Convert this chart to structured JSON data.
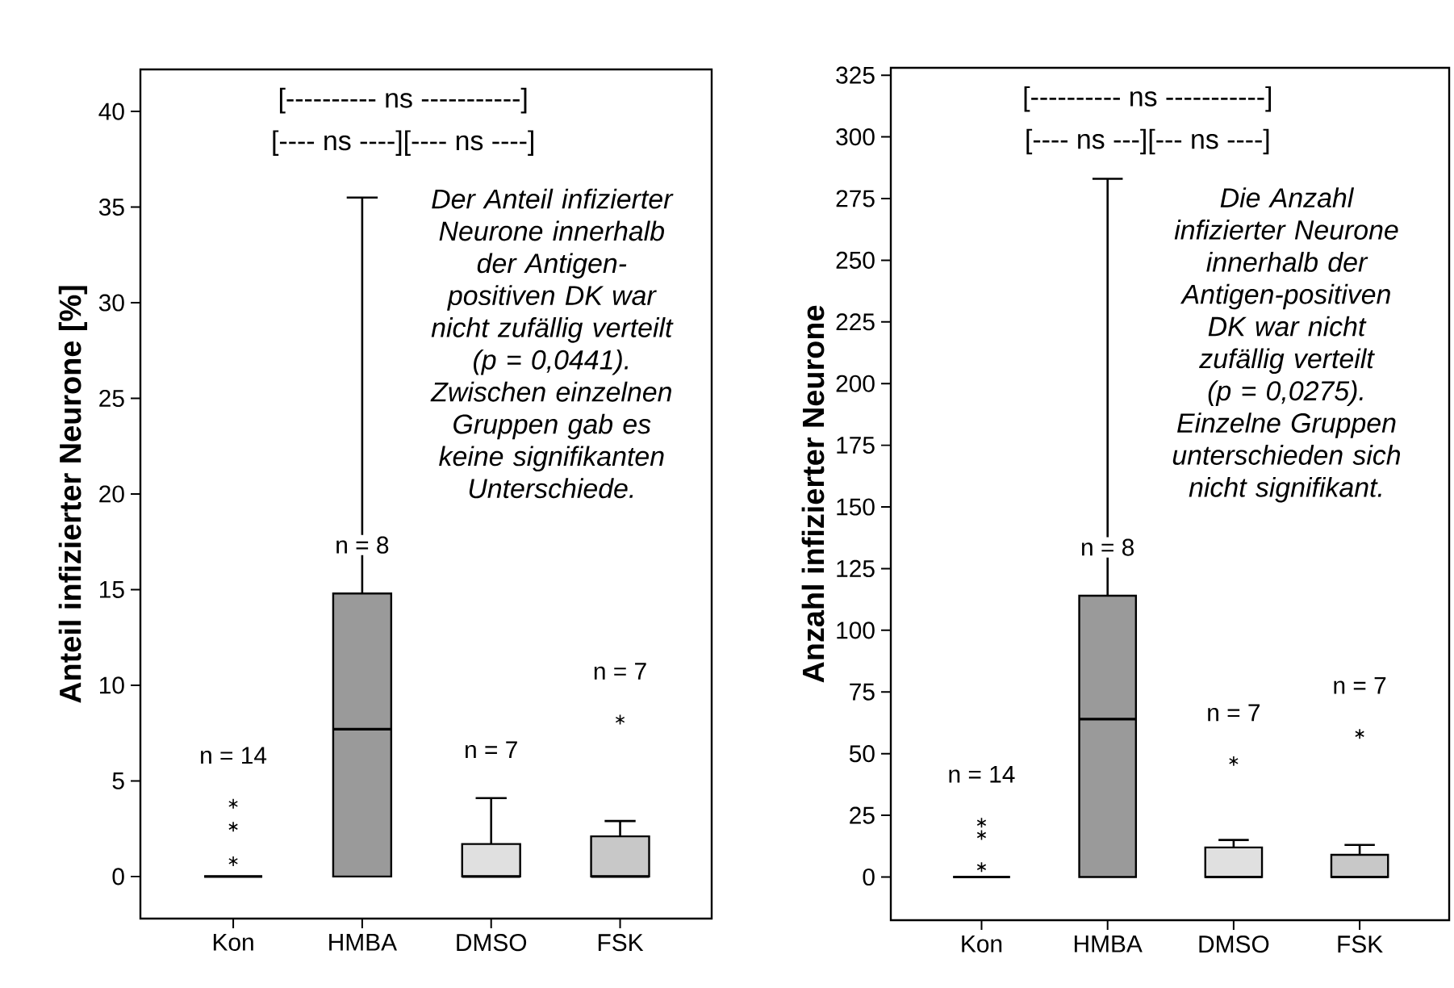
{
  "chart_data": [
    {
      "type": "box",
      "ylabel": "Anteil infizierter Neurone [%]",
      "categories": [
        "Kon",
        "HMBA",
        "DMSO",
        "FSK"
      ],
      "colors": [
        "#000000",
        "#9a9a9a",
        "#e0e0e0",
        "#c8c8c8"
      ],
      "marker": "star",
      "boxes": [
        {
          "low": 0,
          "q1": 0,
          "median": 0,
          "q3": 0,
          "high": 0,
          "outliers": [
            0.8,
            2.6,
            3.8
          ]
        },
        {
          "low": 0,
          "q1": 0,
          "median": 7.7,
          "q3": 14.8,
          "high": 35.5
        },
        {
          "low": 0,
          "q1": 0,
          "median": 0,
          "q3": 1.7,
          "high": 4.1
        },
        {
          "low": 0,
          "q1": 0,
          "median": 0,
          "q3": 2.1,
          "high": 2.9,
          "outliers": [
            8.2
          ]
        }
      ],
      "ylim": [
        -2.2,
        42.2
      ],
      "yticks": [
        0,
        5,
        10,
        15,
        20,
        25,
        30,
        35,
        40
      ],
      "annotations": [
        "[---------- ns -----------]",
        "[---- ns ----][---- ns ----]",
        "Der Anteil infizierter Neurone innerhalb der Antigen-positiven DK war nicht zufällig verteilt (p = 0,0441). Zwischen einzelnen Gruppen gab es keine signifikanten Unterschiede.",
        "n = 14",
        "n = 8",
        "n = 7",
        "n = 7"
      ]
    },
    {
      "type": "box",
      "ylabel": "Anzahl infizierter Neurone",
      "categories": [
        "Kon",
        "HMBA",
        "DMSO",
        "FSK"
      ],
      "colors": [
        "#000000",
        "#9a9a9a",
        "#e0e0e0",
        "#c8c8c8"
      ],
      "marker": "star",
      "boxes": [
        {
          "low": 0,
          "q1": 0,
          "median": 0,
          "q3": 0,
          "high": 0,
          "outliers": [
            4,
            17,
            22
          ]
        },
        {
          "low": 0,
          "q1": 0,
          "median": 64,
          "q3": 114,
          "high": 283
        },
        {
          "low": 0,
          "q1": 0,
          "median": 0,
          "q3": 12,
          "high": 15,
          "outliers": [
            47
          ]
        },
        {
          "low": 0,
          "q1": 0,
          "median": 0,
          "q3": 9,
          "high": 13,
          "outliers": [
            58
          ]
        }
      ],
      "ylim": [
        -17.5,
        328
      ],
      "yticks": [
        0,
        25,
        50,
        75,
        100,
        125,
        150,
        175,
        200,
        225,
        250,
        275,
        300,
        325
      ],
      "annotations": [
        "[---------- ns -----------]",
        "[---- ns ---][--- ns ----]",
        "Die Anzahl infizierter Neurone innerhalb der Antigen-positiven DK war nicht zufällig verteilt (p = 0,0275). Einzelne Gruppen unterschieden sich nicht signifikant.",
        "n = 14",
        "n = 8",
        "n = 7",
        "n = 7"
      ]
    }
  ]
}
